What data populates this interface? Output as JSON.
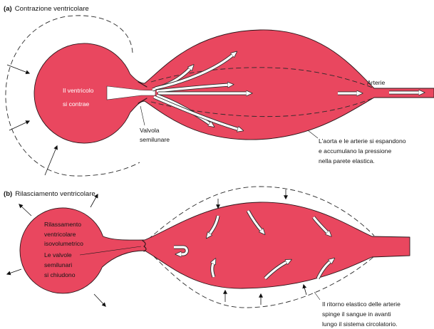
{
  "panel_a": {
    "tag": "(a)",
    "title": "Contrazione ventricolare",
    "ventricle_label": [
      "Il ventricolo",
      "si contrae"
    ],
    "valve_label": [
      "Valvola",
      "semilunare"
    ],
    "arteries_label": "Arterie",
    "aorta_caption": [
      "L'aorta e le arterie si espandono",
      "e accumulano la pressione",
      "nella parete elastica."
    ]
  },
  "panel_b": {
    "tag": "(b)",
    "title": "Rilasciamento ventricolare",
    "relaxation_label": [
      "Rilassamento",
      "ventricolare",
      "isovolumetrico"
    ],
    "valve_label": [
      "Le valvole",
      "semilunari",
      "si chiudono"
    ],
    "recoil_caption": [
      "Il ritorno elastico delle arterie",
      "spinge il sangue in avanti",
      "lungo il sistema circolatorio."
    ]
  },
  "colors": {
    "tissue": "#e9475f",
    "flow_arrow": "#ffffff",
    "outline": "#2b1519",
    "text": "#151515"
  }
}
